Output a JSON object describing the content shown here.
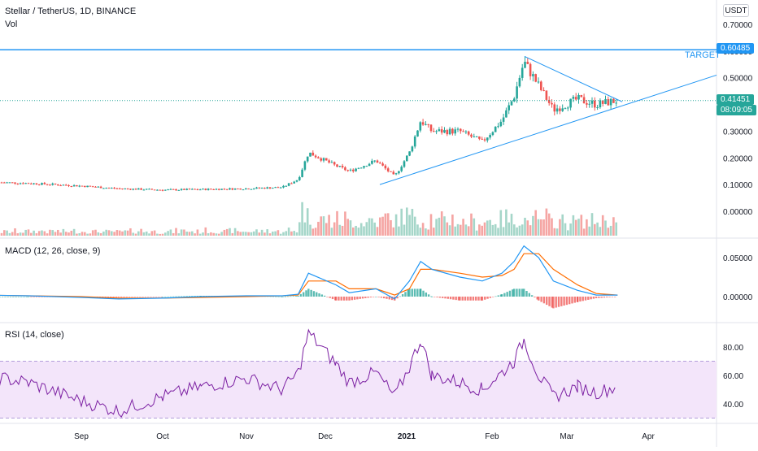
{
  "header": {
    "symbol_line": "Stellar / TetherUS, 1D, BINANCE",
    "volume_label": "Vol",
    "currency_button": "USDT"
  },
  "target": {
    "label": "TARGET",
    "price": "0.60485"
  },
  "last_price": {
    "price": "0.41451",
    "countdown": "08:09:05"
  },
  "colors": {
    "bull": "#26a69a",
    "bear": "#ef5350",
    "trendline": "#2196f3",
    "vol_bull": "#a5d6c9",
    "vol_bear": "#f5a5a3",
    "macd_line": "#2196f3",
    "signal_line": "#ff6d00",
    "rsi_line": "#7b1fa2",
    "rsi_band": "#f3e5fa"
  },
  "x_axis": [
    "Sep",
    "Oct",
    "Nov",
    "Dec",
    "2021",
    "Feb",
    "Mar",
    "Apr"
  ],
  "panels": {
    "macd_label": "MACD (12, 26, close, 9)",
    "rsi_label": "RSI (14, close)"
  },
  "chart_data": [
    {
      "type": "candlestick",
      "title": "Stellar / TetherUS, 1D, BINANCE",
      "y_ticks": [
        "0.70000",
        "0.60000",
        "0.50000",
        "0.40000",
        "0.30000",
        "0.20000",
        "0.10000",
        "0.00000"
      ],
      "ylim": [
        0,
        0.7
      ],
      "series": [
        {
          "name": "Vol",
          "note": "volume histogram"
        }
      ],
      "closes": [
        {
          "x": "Aug 01",
          "y": 0.11
        },
        {
          "x": "Aug 15",
          "y": 0.105
        },
        {
          "x": "Sep 01",
          "y": 0.095
        },
        {
          "x": "Sep 15",
          "y": 0.085
        },
        {
          "x": "Oct 01",
          "y": 0.08
        },
        {
          "x": "Oct 15",
          "y": 0.082
        },
        {
          "x": "Nov 01",
          "y": 0.085
        },
        {
          "x": "Nov 15",
          "y": 0.09
        },
        {
          "x": "Nov 21",
          "y": 0.12
        },
        {
          "x": "Nov 25",
          "y": 0.22
        },
        {
          "x": "Dec 05",
          "y": 0.17
        },
        {
          "x": "Dec 10",
          "y": 0.15
        },
        {
          "x": "Dec 20",
          "y": 0.19
        },
        {
          "x": "Dec 27",
          "y": 0.13
        },
        {
          "x": "Jan 02",
          "y": 0.22
        },
        {
          "x": "Jan 06",
          "y": 0.34
        },
        {
          "x": "Jan 10",
          "y": 0.3
        },
        {
          "x": "Jan 20",
          "y": 0.3
        },
        {
          "x": "Jan 28",
          "y": 0.26
        },
        {
          "x": "Feb 05",
          "y": 0.34
        },
        {
          "x": "Feb 10",
          "y": 0.43
        },
        {
          "x": "Feb 14",
          "y": 0.56
        },
        {
          "x": "Feb 20",
          "y": 0.47
        },
        {
          "x": "Feb 26",
          "y": 0.38
        },
        {
          "x": "Mar 05",
          "y": 0.42
        },
        {
          "x": "Mar 12",
          "y": 0.4
        },
        {
          "x": "Mar 20",
          "y": 0.415
        }
      ],
      "target_price": 0.60485,
      "last_price": 0.41451
    },
    {
      "type": "line",
      "title": "MACD (12, 26, close, 9)",
      "y_ticks": [
        "0.05000",
        "0.00000"
      ],
      "ylim": [
        -0.03,
        0.07
      ],
      "series": [
        {
          "name": "MACD",
          "values": [
            0.002,
            0.001,
            -0.001,
            -0.003,
            -0.002,
            0.0,
            0.001,
            0.001,
            0.003,
            0.03,
            0.015,
            0.005,
            0.01,
            -0.003,
            0.02,
            0.045,
            0.035,
            0.025,
            0.02,
            0.03,
            0.045,
            0.065,
            0.05,
            0.02,
            0.008,
            0.002,
            0.002
          ]
        },
        {
          "name": "Signal",
          "values": [
            0.002,
            0.001,
            0.0,
            -0.002,
            -0.002,
            -0.001,
            0.0,
            0.001,
            0.002,
            0.02,
            0.02,
            0.01,
            0.01,
            0.002,
            0.01,
            0.035,
            0.035,
            0.03,
            0.025,
            0.027,
            0.035,
            0.055,
            0.055,
            0.035,
            0.015,
            0.004,
            0.002
          ]
        }
      ]
    },
    {
      "type": "line",
      "title": "RSI (14, close)",
      "y_ticks": [
        "80.00",
        "60.00",
        "40.00"
      ],
      "ylim": [
        25,
        95
      ],
      "band": [
        30,
        70
      ],
      "series": [
        {
          "name": "RSI",
          "values": [
            60,
            55,
            42,
            35,
            45,
            52,
            58,
            50,
            62,
            90,
            68,
            55,
            62,
            45,
            66,
            85,
            60,
            55,
            50,
            62,
            70,
            85,
            60,
            45,
            52,
            48,
            52
          ]
        }
      ]
    }
  ]
}
